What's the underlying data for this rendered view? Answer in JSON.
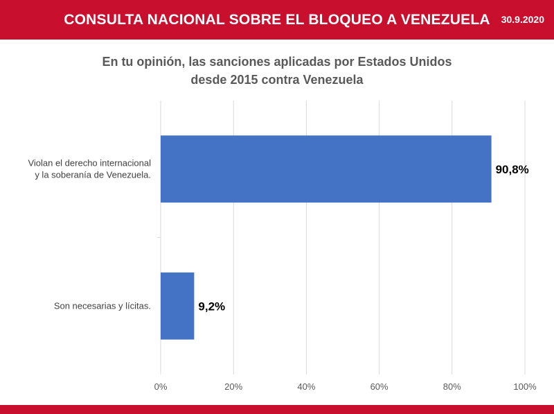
{
  "header": {
    "title": "CONSULTA NACIONAL SOBRE EL BLOQUEO A VENEZUELA",
    "date": "30.9.2020"
  },
  "colors": {
    "brand": "#c8102e",
    "bar": "#4472c4"
  },
  "chart_data": {
    "type": "bar",
    "orientation": "horizontal",
    "title_lines": [
      "En tu opinión, las sanciones aplicadas por Estados Unidos",
      "desde 2015 contra Venezuela"
    ],
    "categories": [
      [
        "Violan el derecho internacional",
        "y la soberanía de Venezuela."
      ],
      [
        "Son necesarias y lícitas."
      ]
    ],
    "values": [
      90.8,
      9.2
    ],
    "data_labels": [
      "90,8%",
      "9,2%"
    ],
    "xlim": [
      0,
      100
    ],
    "x_ticks": [
      0,
      20,
      40,
      60,
      80,
      100
    ],
    "x_tick_labels": [
      "0%",
      "20%",
      "40%",
      "60%",
      "80%",
      "100%"
    ],
    "grid": true,
    "legend": "none"
  }
}
